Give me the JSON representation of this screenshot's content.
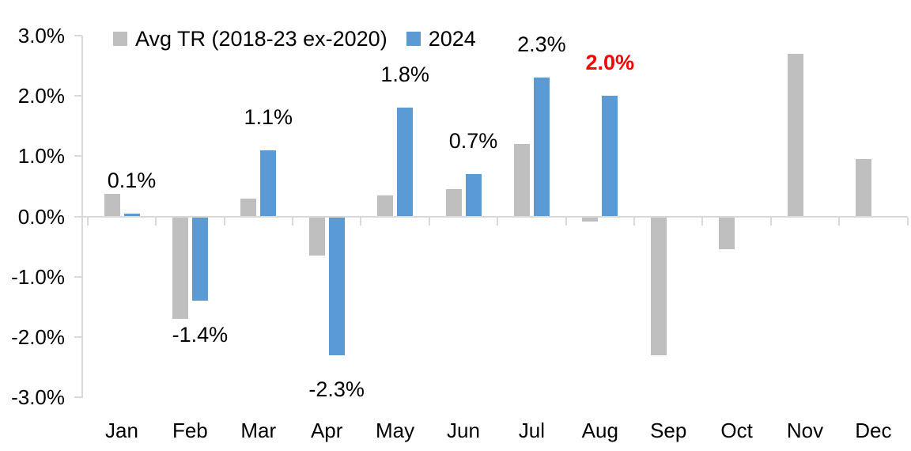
{
  "chart_data": {
    "type": "bar",
    "title": "",
    "xlabel": "",
    "ylabel": "",
    "categories": [
      "Jan",
      "Feb",
      "Mar",
      "Apr",
      "May",
      "Jun",
      "Jul",
      "Aug",
      "Sep",
      "Oct",
      "Nov",
      "Dec"
    ],
    "series": [
      {
        "name": "Avg TR (2018-23 ex-2020)",
        "color": "#BFBFBF",
        "values": [
          0.38,
          -1.7,
          0.3,
          -0.65,
          0.35,
          0.45,
          1.2,
          -0.08,
          -2.3,
          -0.55,
          2.7,
          0.95
        ]
      },
      {
        "name": "2024",
        "color": "#5B9BD5",
        "values": [
          0.05,
          -1.4,
          1.1,
          -2.3,
          1.8,
          0.7,
          2.3,
          2.0,
          null,
          null,
          null,
          null
        ],
        "data_labels": [
          "0.1%",
          "-1.4%",
          "1.1%",
          "-2.3%",
          "1.8%",
          "0.7%",
          "2.3%",
          "2.0%",
          null,
          null,
          null,
          null
        ],
        "highlighted_label": {
          "index": 7,
          "text": "2.0%",
          "color": "#FF0000",
          "bold": true
        }
      }
    ],
    "ylim": [
      -3,
      3
    ],
    "ytick_labels": [
      "3.0%",
      "2.0%",
      "1.0%",
      "0.0%",
      "-1.0%",
      "-2.0%",
      "-3.0%"
    ],
    "grid": false,
    "legend_position": "top",
    "colors": {
      "axis": "#D9D9D9",
      "text": "#000000",
      "highlight": "#FF0000",
      "background": "#FFFFFF"
    }
  }
}
